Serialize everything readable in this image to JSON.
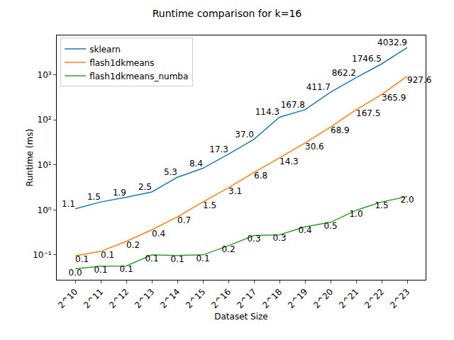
{
  "chart_data": {
    "type": "line",
    "title": "Runtime comparison for k=16",
    "x_label": "Dataset Size",
    "y_label": "Runtime (ms)",
    "categories": [
      "2^10",
      "2^11",
      "2^12",
      "2^13",
      "2^14",
      "2^15",
      "2^16",
      "2^17",
      "2^18",
      "2^19",
      "2^20",
      "2^21",
      "2^22",
      "2^23"
    ],
    "series": [
      {
        "name": "sklearn",
        "color": "#1f77b4",
        "values": [
          1.06,
          1.5,
          1.9,
          2.5,
          5.3,
          8.4,
          17.3,
          37.0,
          114.3,
          167.8,
          411.7,
          862.2,
          1746.5,
          4032.9
        ],
        "value_labels": [
          "1.1",
          "1.5",
          "1.9",
          "2.5",
          "5.3",
          "8.4",
          "17.3",
          "37.0",
          "114.3",
          "167.8",
          "411.7",
          "862.2",
          "1746.5",
          "4032.9"
        ]
      },
      {
        "name": "flash1dkmeans",
        "color": "#ff7f0e",
        "values": [
          0.095,
          0.12,
          0.2,
          0.36,
          0.7,
          1.5,
          3.1,
          6.8,
          14.3,
          30.6,
          68.9,
          167.5,
          365.9,
          927.6
        ],
        "value_labels": [
          "0.1",
          "0.1",
          "0.2",
          "0.4",
          "0.7",
          "1.5",
          "3.1",
          "6.8",
          "14.3",
          "30.6",
          "68.9",
          "167.5",
          "365.9",
          "927.6"
        ]
      },
      {
        "name": "flash1dkmeans_numba",
        "color": "#2ca02c",
        "values": [
          0.049,
          0.056,
          0.057,
          0.1,
          0.097,
          0.1,
          0.16,
          0.27,
          0.28,
          0.42,
          0.53,
          0.98,
          1.5,
          1.98
        ],
        "value_labels": [
          "0.0",
          "0.1",
          "0.1",
          "0.1",
          "0.1",
          "0.1",
          "0.2",
          "0.3",
          "0.3",
          "0.4",
          "0.5",
          "1.0",
          "1.5",
          "2.0"
        ]
      }
    ],
    "log": "y",
    "ylim": [
      0.028,
      7500
    ],
    "yticks": [
      {
        "value": 0.1,
        "label": "10⁻¹"
      },
      {
        "value": 1,
        "label": "10⁰"
      },
      {
        "value": 10,
        "label": "10¹"
      },
      {
        "value": 100,
        "label": "10²"
      },
      {
        "value": 1000,
        "label": "10³"
      }
    ],
    "grid": false,
    "legend": "upper left",
    "data_labels": true
  }
}
